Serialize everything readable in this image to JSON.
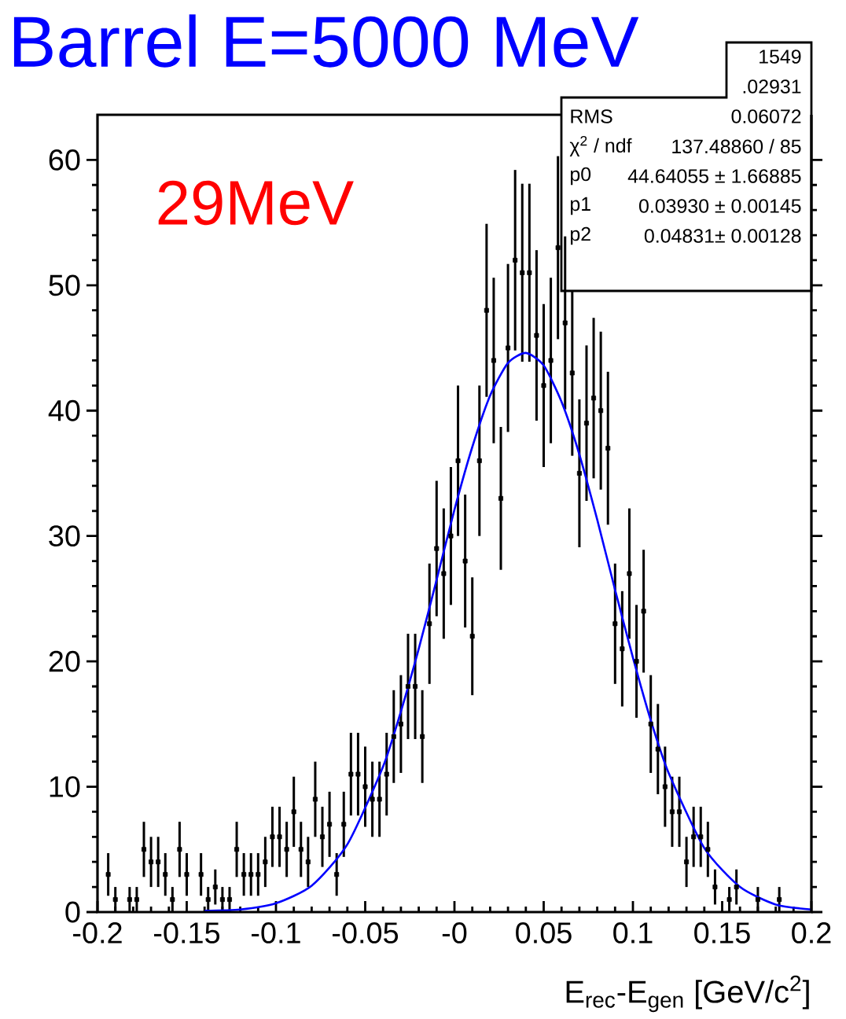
{
  "chart_data": {
    "type": "scatter",
    "title": "Barrel E=5000 MeV",
    "xlabel": "E$_{rec}$-E$_{gen}$ [GeV/c$^{2}$]",
    "annotations": [
      "29MeV",
      "1549",
      ".02931",
      "RMS",
      "0.06072",
      "χ$^{2}$ / ndf",
      "137.48860 / 85",
      "p0",
      "44.64055 ± 1.66885",
      "p1",
      "0.03930 ± 0.00145",
      "p2",
      "0.04831± 0.00128"
    ],
    "xlim": [
      -0.2,
      0.2
    ],
    "ylim": [
      0,
      63.6
    ],
    "xticks": [
      -0.2,
      -0.15,
      -0.1,
      -0.05,
      {
        "value": 0,
        "label": "-0"
      },
      0.05,
      0.1,
      0.15,
      0.2
    ],
    "yticks": [
      0,
      10,
      20,
      30,
      40,
      50,
      60
    ],
    "marker": "square",
    "series": [
      {
        "color": "#000000",
        "x": [
          -0.194,
          -0.19,
          -0.182,
          -0.178,
          -0.174,
          -0.17,
          -0.166,
          -0.162,
          -0.158,
          -0.154,
          -0.15,
          -0.142,
          -0.138,
          -0.134,
          -0.13,
          -0.126,
          -0.122,
          -0.118,
          -0.114,
          -0.11,
          -0.106,
          -0.102,
          -0.098,
          -0.094,
          -0.09,
          -0.086,
          -0.082,
          -0.078,
          -0.074,
          -0.07,
          -0.066,
          -0.062,
          -0.058,
          -0.054,
          -0.05,
          -0.046,
          -0.042,
          -0.038,
          -0.034,
          -0.03,
          -0.026,
          -0.022,
          -0.018,
          -0.014,
          -0.01,
          -0.006,
          -0.002,
          0.002,
          0.006,
          0.01,
          0.014,
          0.018,
          0.022,
          0.026,
          0.03,
          0.034,
          0.038,
          0.042,
          0.046,
          0.05,
          0.054,
          0.058,
          0.062,
          0.066,
          0.07,
          0.074,
          0.078,
          0.082,
          0.086,
          0.09,
          0.094,
          0.098,
          0.102,
          0.106,
          0.11,
          0.114,
          0.118,
          0.122,
          0.126,
          0.13,
          0.134,
          0.138,
          0.142,
          0.146,
          0.154,
          0.158,
          0.17,
          0.182
        ],
        "values": [
          3,
          1,
          1,
          1,
          5,
          4,
          4,
          3,
          1,
          5,
          3,
          3,
          1,
          2,
          1,
          1,
          5,
          3,
          3,
          3,
          4,
          6,
          6,
          5,
          8,
          5,
          4,
          9,
          6,
          7,
          3,
          7,
          11,
          11,
          10,
          9,
          9,
          11,
          14,
          15,
          18,
          18,
          14,
          23,
          29,
          27,
          30,
          36,
          28,
          22,
          36,
          48,
          44,
          33,
          45,
          52,
          51,
          51,
          46,
          42,
          44,
          53,
          47,
          43,
          35,
          39,
          41,
          40,
          37,
          23,
          21,
          27,
          20,
          24,
          15,
          13,
          10,
          8,
          8,
          4,
          6,
          6,
          5,
          2,
          1,
          2,
          1,
          1
        ],
        "errors": [
          1.7,
          1,
          1,
          1,
          2.2,
          2,
          2,
          1.7,
          1,
          2.2,
          1.7,
          1.7,
          1,
          1.4,
          1,
          1,
          2.2,
          1.7,
          1.7,
          1.7,
          2,
          2.4,
          2.4,
          2.2,
          2.8,
          2.2,
          2,
          3,
          2.4,
          2.6,
          1.7,
          2.6,
          3.3,
          3.3,
          3.2,
          3,
          3,
          3.3,
          3.7,
          3.9,
          4.2,
          4.2,
          3.7,
          4.8,
          5.4,
          5.2,
          5.5,
          6,
          5.3,
          4.7,
          6,
          6.9,
          6.6,
          5.7,
          6.7,
          7.2,
          7.1,
          7.1,
          6.8,
          6.5,
          6.6,
          7.3,
          6.9,
          6.6,
          5.9,
          6.2,
          6.4,
          6.3,
          6.1,
          4.8,
          4.6,
          5.2,
          4.5,
          4.9,
          3.9,
          3.6,
          3.2,
          2.8,
          2.8,
          2,
          2.4,
          2.4,
          2.2,
          1.4,
          1,
          1.4,
          1,
          1
        ]
      },
      {
        "type": "line",
        "color": "#0000ff",
        "marker": "none",
        "x": [
          -0.14,
          -0.12,
          -0.1,
          -0.08,
          -0.06,
          -0.04,
          -0.03,
          -0.02,
          -0.01,
          0,
          0.01,
          0.02,
          0.03,
          0.04,
          0.05,
          0.06,
          0.07,
          0.08,
          0.09,
          0.1,
          0.11,
          0.12,
          0.14,
          0.16,
          0.18,
          0.2
        ],
        "values": [
          0.1,
          0.2,
          0.7,
          2.1,
          5.4,
          11.6,
          16.0,
          21.0,
          26.5,
          32.1,
          37.1,
          41.2,
          43.8,
          44.6,
          43.6,
          40.7,
          36.5,
          31.3,
          25.7,
          20.3,
          15.3,
          11.1,
          5.1,
          2.0,
          0.6,
          0.2
        ]
      }
    ]
  }
}
